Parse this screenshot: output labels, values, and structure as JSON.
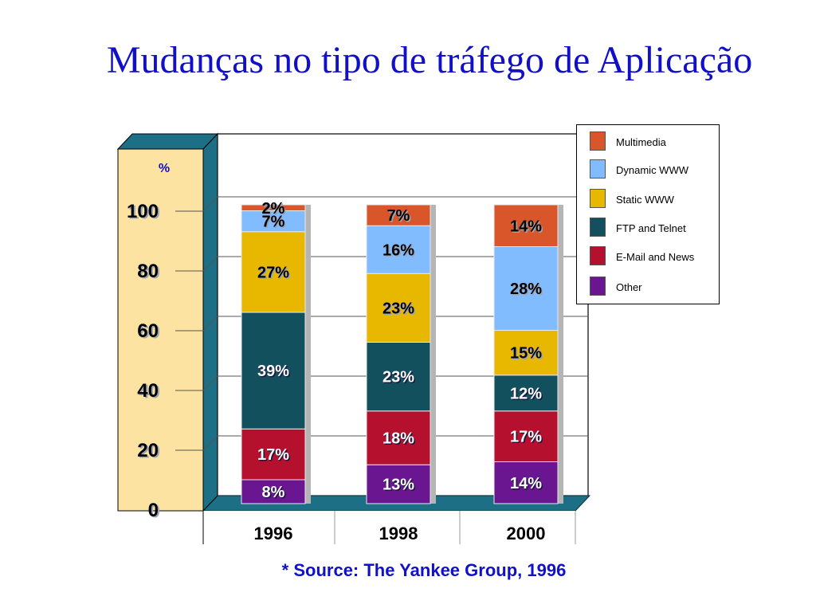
{
  "title": "Mudanças no tipo de tráfego de Aplicação",
  "source": "* Source: The Yankee Group, 1996",
  "chart_data": {
    "type": "bar",
    "stacked": true,
    "three_d": true,
    "ylabel": "%",
    "ylim": [
      0,
      100
    ],
    "yticks": [
      "0",
      "20",
      "40",
      "60",
      "80",
      "100"
    ],
    "categories": [
      "1996",
      "1998",
      "2000"
    ],
    "grid": true,
    "legend_position": "top-right",
    "series": [
      {
        "name": "Other",
        "color": "#6a1691",
        "values": [
          8,
          13,
          14
        ],
        "labels": [
          "8%",
          "13%",
          "14%"
        ]
      },
      {
        "name": "E-Mail and News",
        "color": "#b5102e",
        "values": [
          17,
          18,
          17
        ],
        "labels": [
          "17%",
          "18%",
          "17%"
        ]
      },
      {
        "name": "FTP and Telnet",
        "color": "#12505e",
        "values": [
          39,
          23,
          12
        ],
        "labels": [
          "39%",
          "23%",
          "12%"
        ]
      },
      {
        "name": "Static WWW",
        "color": "#e8b800",
        "values": [
          27,
          23,
          15
        ],
        "labels": [
          "27%",
          "23%",
          "15%"
        ]
      },
      {
        "name": "Dynamic WWW",
        "color": "#80bcff",
        "values": [
          7,
          16,
          28
        ],
        "labels": [
          "7%",
          "16%",
          "28%"
        ]
      },
      {
        "name": "Multimedia",
        "color": "#d8562a",
        "values": [
          2,
          7,
          14
        ],
        "labels": [
          "2%",
          "7%",
          "14%"
        ]
      }
    ],
    "legend_order": [
      "Multimedia",
      "Dynamic WWW",
      "Static WWW",
      "FTP and Telnet",
      "E-Mail and News",
      "Other"
    ]
  }
}
